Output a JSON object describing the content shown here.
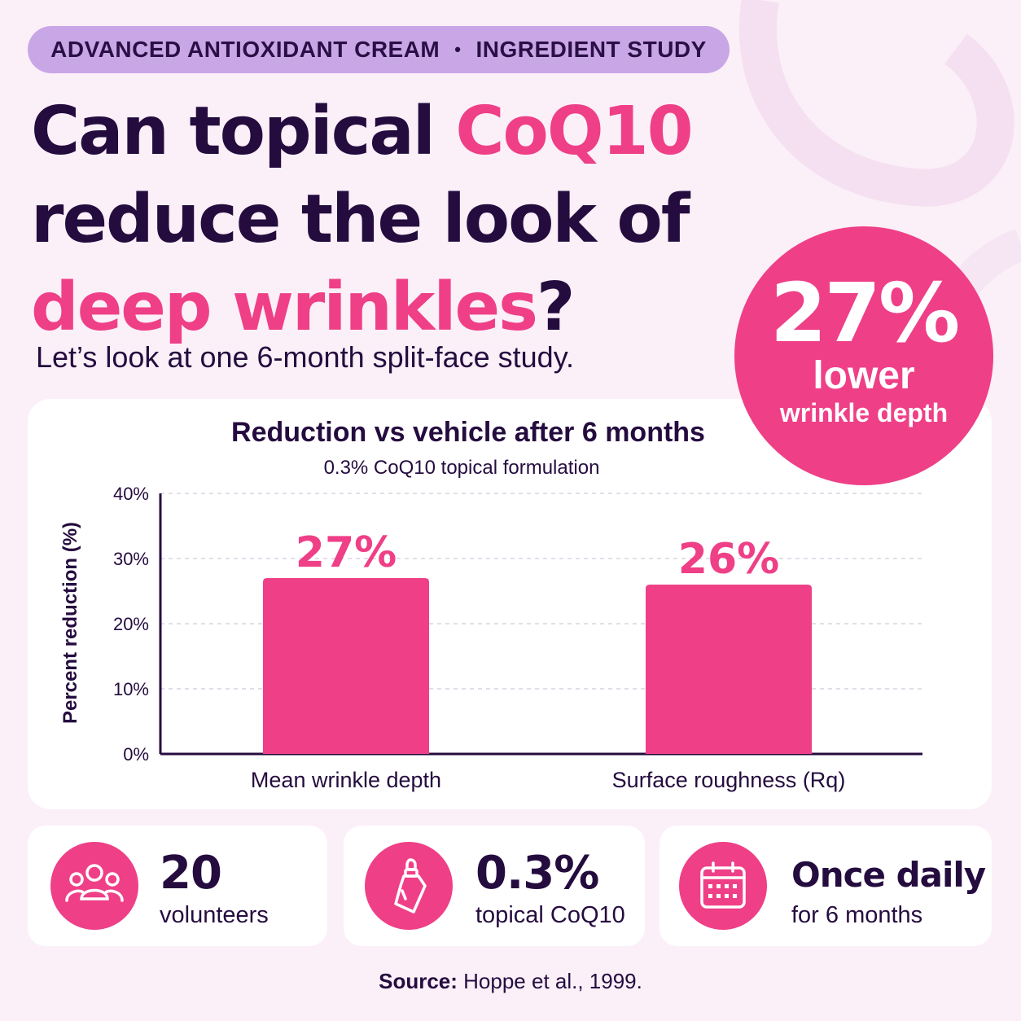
{
  "tag": {
    "left": "ADVANCED ANTIOXIDANT CREAM",
    "sep": "•",
    "right": "INGREDIENT STUDY"
  },
  "headline": {
    "l1a": "Can topical ",
    "l1b": "CoQ10",
    "l2": "reduce the look of",
    "l3a": "deep wrinkles",
    "l3b": "?"
  },
  "subline": "Let’s look at one 6-month split-face study.",
  "badge": {
    "value": "27%",
    "line1": "lower",
    "line2": "wrinkle depth"
  },
  "chart_data": {
    "type": "bar",
    "title": "Reduction vs vehicle after 6 months",
    "subtitle": "0.3% CoQ10 topical formulation",
    "ylabel": "Percent reduction (%)",
    "xlabel": "",
    "categories": [
      "Mean wrinkle depth",
      "Surface roughness (Rq)"
    ],
    "values": [
      27,
      26
    ],
    "data_labels": [
      "27%",
      "26%"
    ],
    "ylim": [
      0,
      40
    ],
    "yticks": [
      0,
      10,
      20,
      30,
      40
    ],
    "ytick_labels": [
      "0%",
      "10%",
      "20%",
      "30%",
      "40%"
    ],
    "grid": "horizontal dashed",
    "bar_color": "#ef3f87"
  },
  "stats": [
    {
      "value": "20",
      "label": "volunteers",
      "icon": "people-icon"
    },
    {
      "value": "0.3%",
      "label": "topical CoQ10",
      "icon": "dropper-bottle-icon"
    },
    {
      "value": "Once daily",
      "label": "for 6 months",
      "icon": "calendar-icon"
    }
  ],
  "source": {
    "label": "Source:",
    "text": " Hoppe et al., 1999."
  },
  "colors": {
    "accent": "#ef3f87",
    "ink": "#250c3f",
    "tag_bg": "#c9a6e6",
    "page_bg": "#fbeff8"
  }
}
